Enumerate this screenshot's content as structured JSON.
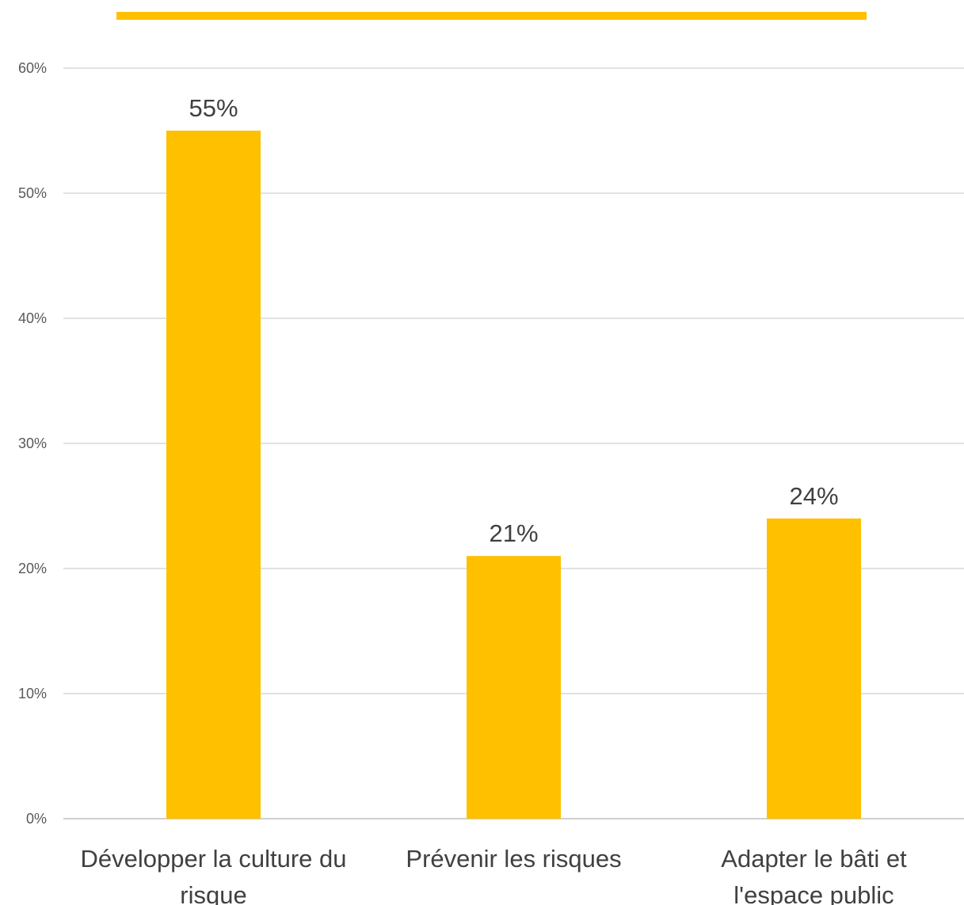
{
  "chart_data": {
    "type": "bar",
    "title": "",
    "xlabel": "",
    "ylabel": "",
    "categories": [
      "Développer la culture du risque",
      "Prévenir les risques",
      "Adapter le bâti et l'espace public"
    ],
    "category_lines": [
      [
        "Développer la culture du",
        "risque"
      ],
      [
        "Prévenir les risques"
      ],
      [
        "Adapter le bâti et",
        "l'espace public"
      ]
    ],
    "values": [
      55,
      21,
      24
    ],
    "data_labels": [
      "55%",
      "21%",
      "24%"
    ],
    "ylim": [
      0,
      60
    ],
    "yticks": [
      0,
      10,
      20,
      30,
      40,
      50,
      60
    ],
    "ytick_labels": [
      "0%",
      "10%",
      "20%",
      "30%",
      "40%",
      "50%",
      "60%"
    ],
    "grid": true,
    "legend": "none",
    "colors": {
      "bar": "#FFC000",
      "accent_rule": "#FFC000",
      "grid": "#D9D9D9",
      "text": "#404040"
    }
  }
}
